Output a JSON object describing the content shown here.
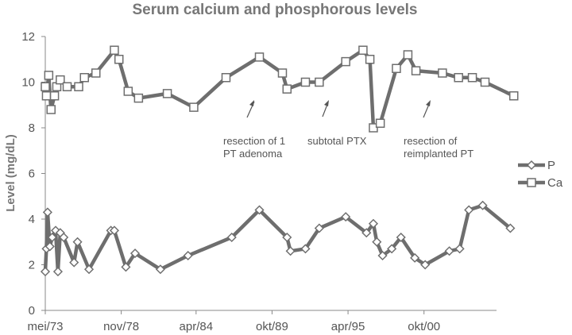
{
  "chart_data": {
    "type": "line",
    "title": "Serum calcium and phosphorous levels",
    "xlabel": "",
    "ylabel": "Level (mg/dL)",
    "ylim": [
      0,
      12
    ],
    "yticks": [
      0,
      2,
      4,
      6,
      8,
      10,
      12
    ],
    "xlim": [
      "1973-05",
      "2006-01"
    ],
    "xtick_labels": [
      "mei/73",
      "nov/78",
      "apr/84",
      "okt/89",
      "apr/95",
      "okt/00"
    ],
    "xtick_dates": [
      "1973-05",
      "1978-11",
      "1984-04",
      "1989-10",
      "1995-04",
      "2000-10"
    ],
    "grid": false,
    "legend": "right",
    "line_color": "#6e6e6e",
    "marker_stroke": "#6e6e6e",
    "marker_fill": "#ffffff",
    "series": [
      {
        "name": "P",
        "marker": "diamond",
        "points": [
          [
            "1973-05",
            1.7
          ],
          [
            "1973-06",
            2.7
          ],
          [
            "1973-07",
            4.3
          ],
          [
            "1973-09",
            2.8
          ],
          [
            "1973-11",
            3.2
          ],
          [
            "1974-02",
            3.5
          ],
          [
            "1974-04",
            1.7
          ],
          [
            "1974-06",
            3.4
          ],
          [
            "1974-09",
            3.2
          ],
          [
            "1975-06",
            2.1
          ],
          [
            "1975-09",
            3.0
          ],
          [
            "1976-07",
            1.8
          ],
          [
            "1978-02",
            3.5
          ],
          [
            "1978-05",
            3.5
          ],
          [
            "1979-03",
            1.9
          ],
          [
            "1979-11",
            2.5
          ],
          [
            "1981-09",
            1.8
          ],
          [
            "1983-09",
            2.4
          ],
          [
            "1986-11",
            3.2
          ],
          [
            "1988-11",
            4.4
          ],
          [
            "1990-11",
            3.2
          ],
          [
            "1991-02",
            2.6
          ],
          [
            "1992-03",
            2.7
          ],
          [
            "1993-03",
            3.6
          ],
          [
            "1995-02",
            4.1
          ],
          [
            "1996-08",
            3.4
          ],
          [
            "1997-02",
            3.8
          ],
          [
            "1997-05",
            3.0
          ],
          [
            "1997-10",
            2.4
          ],
          [
            "1998-06",
            2.7
          ],
          [
            "1999-02",
            3.2
          ],
          [
            "2000-02",
            2.3
          ],
          [
            "2000-11",
            2.0
          ],
          [
            "2002-08",
            2.6
          ],
          [
            "2003-05",
            2.7
          ],
          [
            "2004-01",
            4.4
          ],
          [
            "2005-01",
            4.6
          ],
          [
            "2007-01",
            3.6
          ]
        ]
      },
      {
        "name": "Ca",
        "marker": "square",
        "points": [
          [
            "1973-05",
            9.8
          ],
          [
            "1973-06",
            9.4
          ],
          [
            "1973-08",
            10.3
          ],
          [
            "1973-10",
            8.8
          ],
          [
            "1974-01",
            9.4
          ],
          [
            "1974-03",
            9.8
          ],
          [
            "1974-06",
            10.1
          ],
          [
            "1974-12",
            9.8
          ],
          [
            "1975-10",
            9.8
          ],
          [
            "1976-03",
            10.2
          ],
          [
            "1977-01",
            10.4
          ],
          [
            "1978-05",
            11.4
          ],
          [
            "1978-09",
            11.0
          ],
          [
            "1979-05",
            9.6
          ],
          [
            "1980-02",
            9.3
          ],
          [
            "1982-03",
            9.5
          ],
          [
            "1984-02",
            8.9
          ],
          [
            "1986-06",
            10.2
          ],
          [
            "1988-11",
            11.1
          ],
          [
            "1990-07",
            10.4
          ],
          [
            "1990-11",
            9.7
          ],
          [
            "1992-03",
            10.0
          ],
          [
            "1993-03",
            10.0
          ],
          [
            "1995-02",
            10.9
          ],
          [
            "1996-05",
            11.4
          ],
          [
            "1996-11",
            11.0
          ],
          [
            "1997-02",
            8.0
          ],
          [
            "1997-08",
            8.2
          ],
          [
            "1998-10",
            10.6
          ],
          [
            "1999-08",
            11.2
          ],
          [
            "2000-03",
            10.5
          ],
          [
            "2002-02",
            10.4
          ],
          [
            "2003-04",
            10.2
          ],
          [
            "2004-04",
            10.2
          ],
          [
            "2005-03",
            10.0
          ],
          [
            "2007-04",
            9.4
          ]
        ]
      }
    ],
    "annotations": [
      {
        "lines": [
          "resection of 1",
          "PT adenoma"
        ],
        "arrow_target": [
          "1990-02",
          9.4
        ],
        "arrow_from": [
          "1989-09",
          8.8
        ]
      },
      {
        "lines": [
          "subtotal PTX"
        ],
        "arrow_target": [
          "1995-07",
          9.6
        ],
        "arrow_from": [
          "1995-02",
          9.0
        ]
      },
      {
        "lines": [
          "resection of",
          "reimplanted PT"
        ],
        "arrow_target": [
          "2003-05",
          9.5
        ],
        "arrow_from": [
          "2002-11",
          8.9
        ]
      }
    ]
  }
}
